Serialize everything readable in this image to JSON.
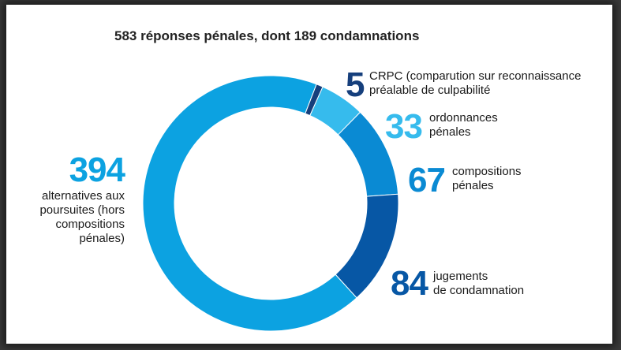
{
  "chart_data": {
    "type": "pie",
    "title": "583 réponses pénales, dont 189 condamnations",
    "total": 583,
    "slices": [
      {
        "value": 5,
        "label": "CRPC (comparution sur reconnaissance",
        "label2": "préalable de culpabilité",
        "color": "#163f7c"
      },
      {
        "value": 33,
        "label": "ordonnances",
        "label2": "pénales",
        "color": "#36bbed"
      },
      {
        "value": 67,
        "label": "compositions",
        "label2": "pénales",
        "color": "#0a8ad3"
      },
      {
        "value": 84,
        "label": "jugements",
        "label2": "de condamnation",
        "color": "#0757a5"
      },
      {
        "value": 394,
        "label": "alternatives aux",
        "label2": "poursuites (hors",
        "label3": "compositions",
        "label4": "pénales)",
        "color": "#0ca2e1"
      }
    ]
  }
}
